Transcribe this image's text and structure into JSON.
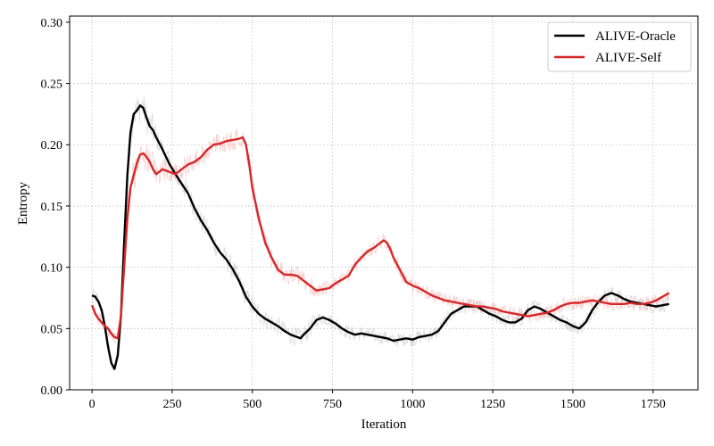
{
  "chart_data": {
    "type": "line",
    "xlabel": "Iteration",
    "ylabel": "Entropy",
    "xlim": [
      -70,
      1890
    ],
    "ylim": [
      0.0,
      0.305
    ],
    "xticks": [
      0,
      250,
      500,
      750,
      1000,
      1250,
      1500,
      1750
    ],
    "yticks": [
      0.0,
      0.05,
      0.1,
      0.15,
      0.2,
      0.25,
      0.3
    ],
    "ytick_labels": [
      "0.00",
      "0.05",
      "0.10",
      "0.15",
      "0.20",
      "0.25",
      "0.30"
    ],
    "grid": true,
    "legend_position": "top-right",
    "series": [
      {
        "name": "ALIVE-Oracle",
        "color": "#000000",
        "raw_color": "#bdbdbd",
        "x": [
          0,
          10,
          20,
          30,
          40,
          50,
          60,
          70,
          80,
          90,
          100,
          110,
          120,
          130,
          140,
          150,
          160,
          170,
          180,
          190,
          200,
          220,
          240,
          260,
          280,
          300,
          320,
          340,
          360,
          380,
          400,
          420,
          440,
          460,
          480,
          500,
          520,
          540,
          560,
          580,
          600,
          620,
          640,
          650,
          660,
          680,
          700,
          720,
          740,
          760,
          780,
          800,
          820,
          840,
          860,
          880,
          900,
          920,
          940,
          960,
          980,
          1000,
          1020,
          1040,
          1060,
          1080,
          1100,
          1120,
          1140,
          1160,
          1180,
          1200,
          1220,
          1240,
          1260,
          1280,
          1300,
          1320,
          1340,
          1360,
          1380,
          1400,
          1420,
          1440,
          1460,
          1480,
          1500,
          1520,
          1540,
          1560,
          1580,
          1600,
          1620,
          1640,
          1660,
          1680,
          1700,
          1720,
          1740,
          1760,
          1780,
          1800
        ],
        "y": [
          0.077,
          0.076,
          0.072,
          0.065,
          0.052,
          0.035,
          0.022,
          0.017,
          0.028,
          0.06,
          0.12,
          0.175,
          0.21,
          0.225,
          0.228,
          0.232,
          0.23,
          0.222,
          0.215,
          0.212,
          0.206,
          0.196,
          0.185,
          0.176,
          0.168,
          0.16,
          0.148,
          0.138,
          0.13,
          0.12,
          0.112,
          0.106,
          0.098,
          0.088,
          0.076,
          0.068,
          0.062,
          0.058,
          0.055,
          0.052,
          0.048,
          0.045,
          0.043,
          0.042,
          0.045,
          0.05,
          0.057,
          0.059,
          0.057,
          0.054,
          0.05,
          0.047,
          0.045,
          0.046,
          0.045,
          0.044,
          0.043,
          0.042,
          0.04,
          0.041,
          0.042,
          0.041,
          0.043,
          0.044,
          0.045,
          0.048,
          0.055,
          0.062,
          0.065,
          0.068,
          0.068,
          0.068,
          0.065,
          0.062,
          0.06,
          0.057,
          0.055,
          0.055,
          0.058,
          0.065,
          0.068,
          0.066,
          0.063,
          0.06,
          0.057,
          0.055,
          0.052,
          0.05,
          0.055,
          0.065,
          0.072,
          0.077,
          0.079,
          0.077,
          0.074,
          0.072,
          0.071,
          0.07,
          0.069,
          0.068,
          0.069,
          0.07
        ]
      },
      {
        "name": "ALIVE-Self",
        "color": "#d62728",
        "raw_color": "#f4a5a5",
        "x": [
          0,
          10,
          20,
          30,
          40,
          50,
          60,
          70,
          80,
          90,
          100,
          110,
          120,
          130,
          140,
          150,
          160,
          170,
          180,
          190,
          200,
          220,
          240,
          260,
          280,
          300,
          320,
          340,
          360,
          380,
          400,
          420,
          440,
          460,
          470,
          480,
          490,
          500,
          520,
          540,
          560,
          580,
          600,
          620,
          640,
          660,
          680,
          700,
          720,
          740,
          760,
          780,
          800,
          820,
          840,
          860,
          880,
          900,
          910,
          920,
          930,
          940,
          960,
          980,
          1000,
          1020,
          1040,
          1060,
          1080,
          1100,
          1120,
          1140,
          1160,
          1180,
          1200,
          1220,
          1240,
          1260,
          1280,
          1300,
          1320,
          1340,
          1360,
          1380,
          1400,
          1420,
          1440,
          1460,
          1480,
          1500,
          1520,
          1540,
          1560,
          1580,
          1600,
          1620,
          1640,
          1660,
          1680,
          1700,
          1720,
          1740,
          1760,
          1780,
          1800
        ],
        "y": [
          0.069,
          0.062,
          0.058,
          0.055,
          0.052,
          0.05,
          0.046,
          0.043,
          0.042,
          0.06,
          0.1,
          0.14,
          0.165,
          0.175,
          0.185,
          0.192,
          0.193,
          0.19,
          0.186,
          0.18,
          0.176,
          0.18,
          0.178,
          0.176,
          0.18,
          0.184,
          0.186,
          0.19,
          0.196,
          0.2,
          0.201,
          0.203,
          0.204,
          0.205,
          0.206,
          0.2,
          0.185,
          0.165,
          0.14,
          0.12,
          0.108,
          0.098,
          0.094,
          0.094,
          0.093,
          0.089,
          0.085,
          0.081,
          0.082,
          0.083,
          0.087,
          0.09,
          0.093,
          0.102,
          0.108,
          0.113,
          0.116,
          0.12,
          0.122,
          0.12,
          0.115,
          0.108,
          0.098,
          0.088,
          0.085,
          0.083,
          0.08,
          0.077,
          0.075,
          0.073,
          0.072,
          0.071,
          0.07,
          0.069,
          0.068,
          0.068,
          0.067,
          0.066,
          0.064,
          0.063,
          0.062,
          0.061,
          0.06,
          0.061,
          0.062,
          0.063,
          0.065,
          0.068,
          0.07,
          0.071,
          0.071,
          0.072,
          0.073,
          0.072,
          0.071,
          0.07,
          0.07,
          0.07,
          0.071,
          0.07,
          0.07,
          0.071,
          0.073,
          0.076,
          0.079
        ]
      }
    ]
  }
}
